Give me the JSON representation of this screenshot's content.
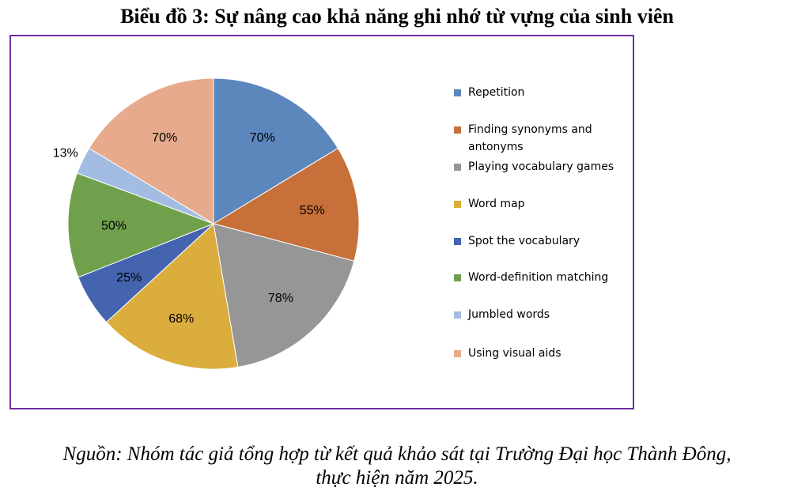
{
  "page": {
    "title": "Biểu đồ 3: Sự nâng cao khả năng ghi nhớ từ vựng của sinh viên",
    "source_line1": "Nguồn: Nhóm tác giả tổng hợp từ kết quả khảo sát tại Trường Đại học Thành Đông,",
    "source_line2": "thực hiện năm 2025."
  },
  "chart_data": {
    "type": "pie",
    "title": "",
    "legend_position": "right",
    "slices": [
      {
        "label": "Repetition",
        "value": 70,
        "display": "70%",
        "color": "#5b87bd"
      },
      {
        "label": "Finding synonyms and antonyms",
        "value": 55,
        "display": "55%",
        "color": "#c8703a"
      },
      {
        "label": "Playing vocabulary games",
        "value": 78,
        "display": "78%",
        "color": "#969696"
      },
      {
        "label": "Word map",
        "value": 68,
        "display": "68%",
        "color": "#dbad3c"
      },
      {
        "label": "Spot the vocabulary",
        "value": 25,
        "display": "25%",
        "color": "#4464b0"
      },
      {
        "label": "Word-definition matching",
        "value": 50,
        "display": "50%",
        "color": "#70a04c"
      },
      {
        "label": "Jumbled words",
        "value": 13,
        "display": "13%",
        "color": "#a3bde2"
      },
      {
        "label": "Using visual aids",
        "value": 70,
        "display": "70%",
        "color": "#e8aa8c"
      }
    ]
  }
}
